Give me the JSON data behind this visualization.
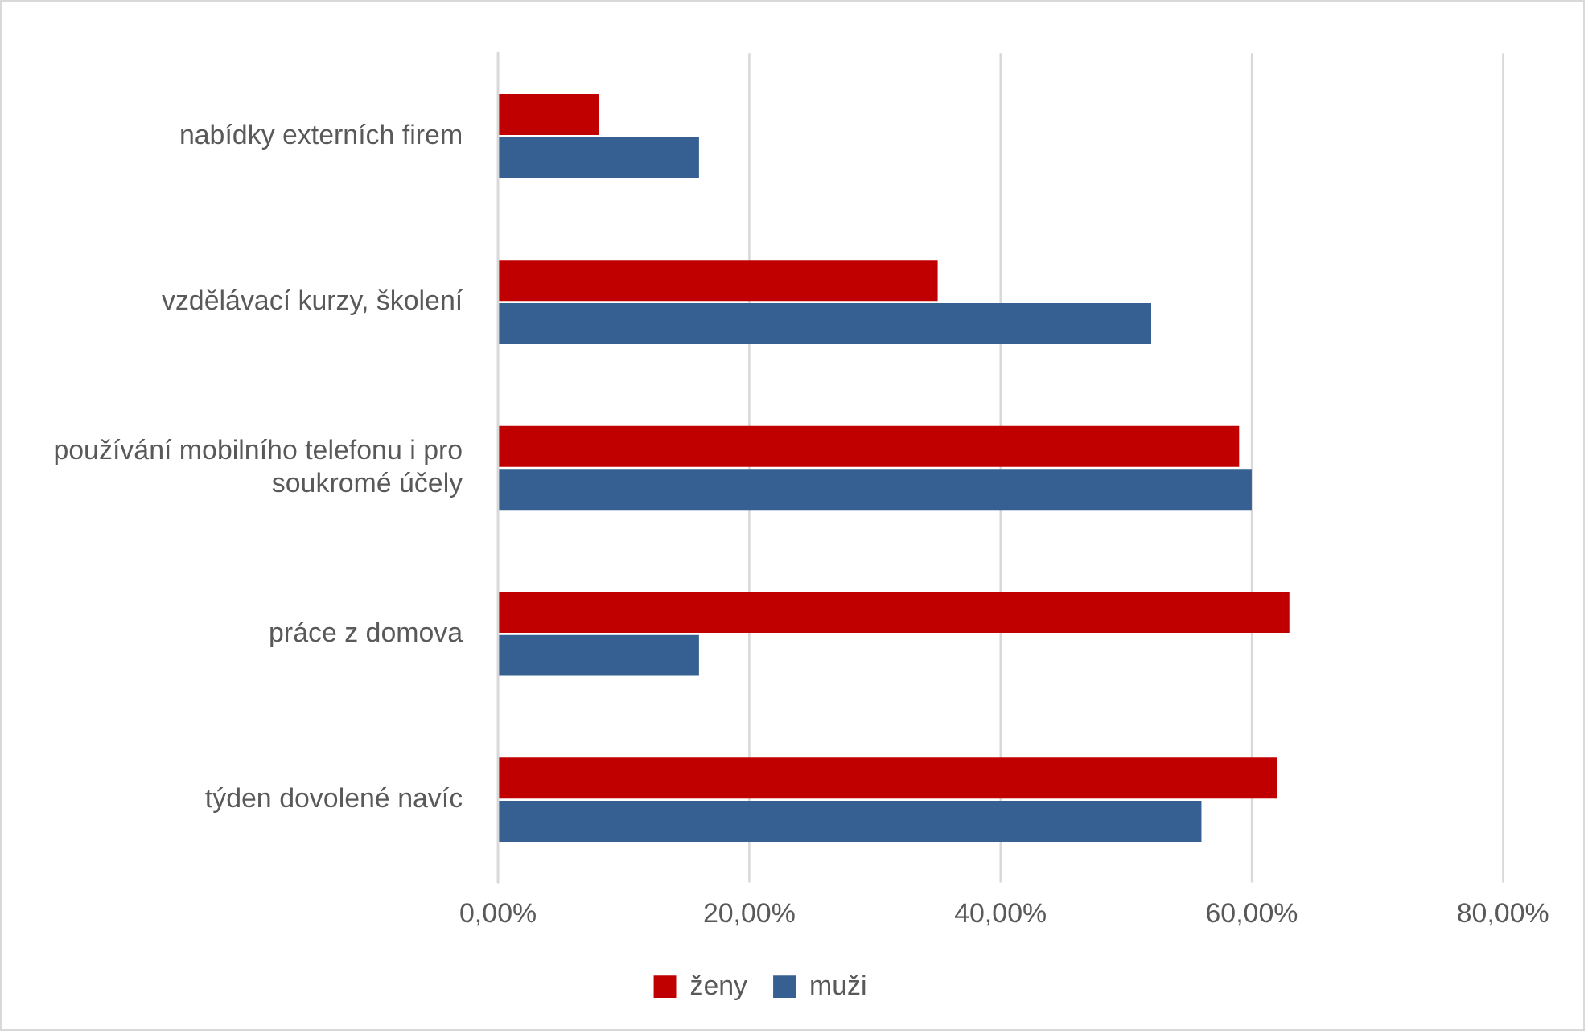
{
  "chart_data": {
    "type": "bar",
    "orientation": "horizontal",
    "categories": [
      "nabídky externích firem",
      "vzdělávací kurzy, školení",
      "používání mobilního telefonu i pro soukromé účely",
      "práce z domova",
      "týden dovolené navíc"
    ],
    "series": [
      {
        "name": "ženy",
        "color": "#c00000",
        "values": [
          8,
          35,
          59,
          63,
          62
        ]
      },
      {
        "name": "muži",
        "color": "#376092",
        "values": [
          16,
          52,
          60,
          16,
          56
        ]
      }
    ],
    "xlim": [
      0,
      80
    ],
    "xticks": [
      {
        "value": 0,
        "label": "0,00%"
      },
      {
        "value": 20,
        "label": "20,00%"
      },
      {
        "value": 40,
        "label": "40,00%"
      },
      {
        "value": 60,
        "label": "60,00%"
      },
      {
        "value": 80,
        "label": "80,00%"
      }
    ],
    "grid": "x",
    "legend": "bottom"
  }
}
